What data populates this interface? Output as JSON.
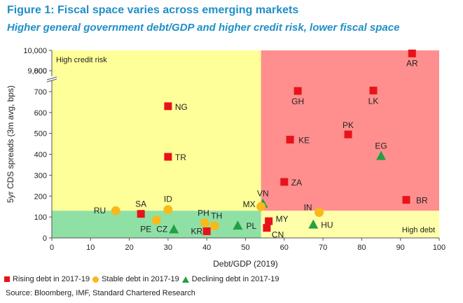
{
  "title": "Figure 1: Fiscal space varies across emerging markets",
  "subtitle": "Higher general government debt/GDP and higher credit risk, lower fiscal space",
  "source": "Source: Bloomberg, IMF, Standard Chartered Research",
  "colors": {
    "rising": "#e8131a",
    "stable": "#f8b91a",
    "declining": "#22a043",
    "high_credit_risk_zone": "#ffff99",
    "high_debt_and_risk_zone": "#ff8f8f",
    "high_debt_zone": "#ffffaa",
    "safe_zone": "#8fe0a5"
  },
  "chart_data": {
    "type": "scatter",
    "xlabel": "Debt/GDP (2019)",
    "ylabel": "5yr CDS spreads (3m avg, bps)",
    "xlim": [
      0,
      100
    ],
    "x_ticks": [
      "0",
      "10",
      "20",
      "30",
      "40",
      "50",
      "60",
      "70",
      "80",
      "90",
      "100"
    ],
    "y_ticks": [
      "0",
      "100",
      "200",
      "300",
      "400",
      "500",
      "600",
      "700",
      "800",
      "9,000",
      "10,000"
    ],
    "y_axis_break": {
      "below": [
        0,
        800
      ],
      "above": [
        9000,
        10000
      ]
    },
    "zones": [
      {
        "label": "High credit risk",
        "x": [
          0,
          54
        ],
        "y": [
          130,
          10000
        ]
      },
      {
        "label": "",
        "x": [
          54,
          100
        ],
        "y": [
          130,
          10000
        ]
      },
      {
        "label": "High debt",
        "x": [
          54,
          100
        ],
        "y": [
          0,
          130
        ]
      },
      {
        "label": "",
        "x": [
          0,
          54
        ],
        "y": [
          0,
          130
        ]
      }
    ],
    "legend": [
      {
        "key": "rising",
        "label": "Rising debt in 2017-19"
      },
      {
        "key": "stable",
        "label": "Stable debt in 2017-19"
      },
      {
        "key": "declining",
        "label": "Declining debt in 2017-19"
      }
    ],
    "points": [
      {
        "label": "AR",
        "x": 93,
        "y": 9850,
        "group": "rising"
      },
      {
        "label": "NG",
        "x": 30,
        "y": 630,
        "group": "rising"
      },
      {
        "label": "GH",
        "x": 63.5,
        "y": 703,
        "group": "rising"
      },
      {
        "label": "LK",
        "x": 83,
        "y": 705,
        "group": "rising"
      },
      {
        "label": "PK",
        "x": 76.5,
        "y": 495,
        "group": "rising"
      },
      {
        "label": "KE",
        "x": 61.5,
        "y": 470,
        "group": "rising"
      },
      {
        "label": "TR",
        "x": 30,
        "y": 388,
        "group": "rising"
      },
      {
        "label": "ZA",
        "x": 60,
        "y": 268,
        "group": "rising"
      },
      {
        "label": "BR",
        "x": 91.5,
        "y": 182,
        "group": "rising"
      },
      {
        "label": "SA",
        "x": 23,
        "y": 115,
        "group": "rising"
      },
      {
        "label": "MY",
        "x": 56,
        "y": 80,
        "group": "rising"
      },
      {
        "label": "CN",
        "x": 55.5,
        "y": 48,
        "group": "rising"
      },
      {
        "label": "KR",
        "x": 40,
        "y": 32,
        "group": "rising"
      },
      {
        "label": "EG",
        "x": 85,
        "y": 393,
        "group": "declining"
      },
      {
        "label": "VN",
        "x": 54.5,
        "y": 165,
        "group": "declining"
      },
      {
        "label": "PL",
        "x": 48,
        "y": 60,
        "group": "declining"
      },
      {
        "label": "HU",
        "x": 67.5,
        "y": 65,
        "group": "declining"
      },
      {
        "label": "CZ",
        "x": 31.5,
        "y": 42,
        "group": "declining"
      },
      {
        "label": "RU",
        "x": 16.5,
        "y": 130,
        "group": "stable"
      },
      {
        "label": "ID",
        "x": 30,
        "y": 135,
        "group": "stable"
      },
      {
        "label": "MX",
        "x": 54,
        "y": 150,
        "group": "stable"
      },
      {
        "label": "IN",
        "x": 69,
        "y": 122,
        "group": "stable"
      },
      {
        "label": "PE",
        "x": 27,
        "y": 85,
        "group": "stable"
      },
      {
        "label": "PH",
        "x": 39.5,
        "y": 72,
        "group": "stable"
      },
      {
        "label": "TH",
        "x": 42,
        "y": 58,
        "group": "stable"
      }
    ]
  }
}
